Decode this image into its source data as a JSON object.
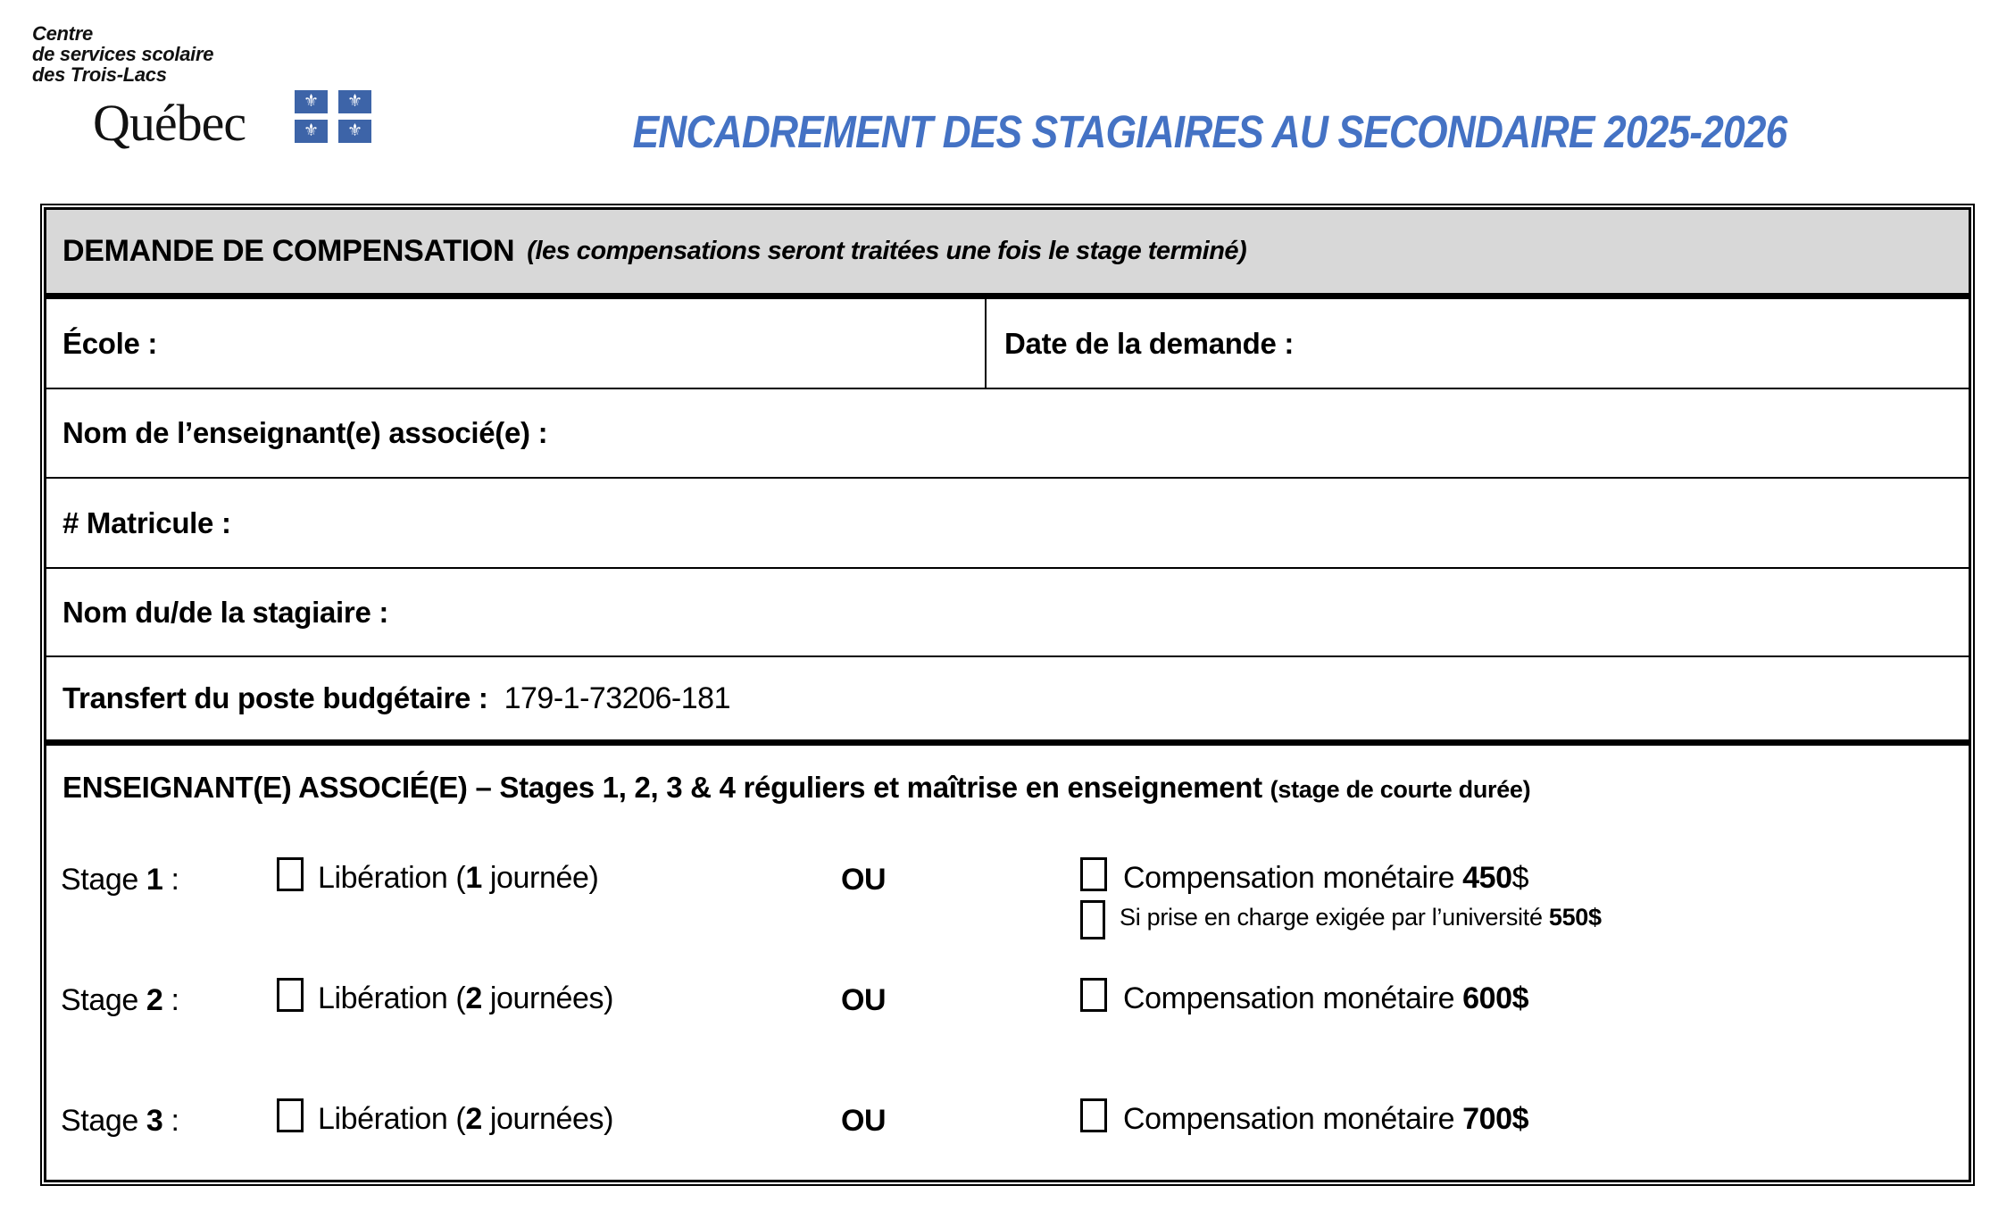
{
  "logo": {
    "org_lines": [
      "Centre",
      "de services scolaire",
      "des Trois-Lacs"
    ],
    "wordmark": "Québec",
    "flag_glyph": "⚜",
    "flag_color": "#3D64A8"
  },
  "title": {
    "text": "ENCADREMENT DES STAGIAIRES AU SECONDAIRE 2025-2026",
    "color": "#4472C4"
  },
  "form": {
    "header": {
      "title": "DEMANDE DE COMPENSATION",
      "note": "(les compensations seront traitées une fois le stage terminé)"
    },
    "rows": {
      "ecole_label": "École :",
      "date_label": "Date de la demande :",
      "enseignant_label": "Nom de l’enseignant(e) associé(e) :",
      "matricule_label": "# Matricule :",
      "stagiaire_label": "Nom du/de la stagiaire :",
      "transfert_label": "Transfert du poste budgétaire :",
      "transfert_value": "179-1-73206-181"
    },
    "section": {
      "title": "ENSEIGNANT(E) ASSOCIÉ(E) – Stages 1, 2, 3 & 4 réguliers et maîtrise en enseignement",
      "subtitle": "(stage de courte durée)"
    },
    "stages": [
      {
        "label_pre": "Stage ",
        "number": "1",
        "label_post": " :",
        "lib_pre": "Libération (",
        "lib_num": "1",
        "lib_post": " journée)",
        "liberation_checked": false,
        "or_label": "OU",
        "comp_pre": "Compensation monétaire ",
        "comp_bold": "450",
        "comp_tail": "$",
        "compensation_checked": false,
        "extra_pre": "Si prise en charge exigée par l’université ",
        "extra_bold": "550$",
        "extra_checked": false
      },
      {
        "label_pre": "Stage ",
        "number": "2",
        "label_post": " :",
        "lib_pre": "Libération (",
        "lib_num": "2",
        "lib_post": " journées)",
        "liberation_checked": false,
        "or_label": "OU",
        "comp_pre": "Compensation monétaire ",
        "comp_bold": "600$",
        "comp_tail": "",
        "compensation_checked": false
      },
      {
        "label_pre": "Stage ",
        "number": "3",
        "label_post": " :",
        "lib_pre": "Libération (",
        "lib_num": "2",
        "lib_post": " journées)",
        "liberation_checked": false,
        "or_label": "OU",
        "comp_pre": "Compensation monétaire ",
        "comp_bold": "700$",
        "comp_tail": "",
        "compensation_checked": false
      }
    ]
  }
}
